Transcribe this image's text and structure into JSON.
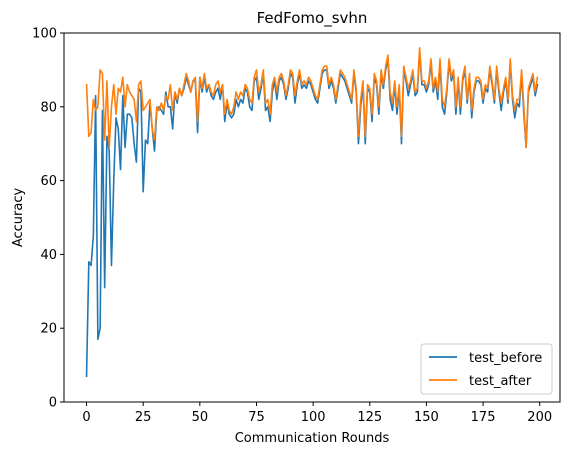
{
  "chart_data": {
    "type": "line",
    "title": "FedFomo_svhn",
    "xlabel": "Communication Rounds",
    "ylabel": "Accuracy",
    "xlim": [
      -9.95,
      208.95
    ],
    "ylim": [
      0,
      100
    ],
    "xticks": [
      0,
      25,
      50,
      75,
      100,
      125,
      150,
      175,
      200
    ],
    "yticks": [
      0,
      20,
      40,
      60,
      80,
      100
    ],
    "grid": false,
    "legend_position": "lower right",
    "x": [
      0,
      1,
      2,
      3,
      4,
      5,
      6,
      7,
      8,
      9,
      10,
      11,
      12,
      13,
      14,
      15,
      16,
      17,
      18,
      19,
      20,
      21,
      22,
      23,
      24,
      25,
      26,
      27,
      28,
      29,
      30,
      31,
      32,
      33,
      34,
      35,
      36,
      37,
      38,
      39,
      40,
      41,
      42,
      43,
      44,
      45,
      46,
      47,
      48,
      49,
      50,
      51,
      52,
      53,
      54,
      55,
      56,
      57,
      58,
      59,
      60,
      61,
      62,
      63,
      64,
      65,
      66,
      67,
      68,
      69,
      70,
      71,
      72,
      73,
      74,
      75,
      76,
      77,
      78,
      79,
      80,
      81,
      82,
      83,
      84,
      85,
      86,
      87,
      88,
      89,
      90,
      91,
      92,
      93,
      94,
      95,
      96,
      97,
      98,
      99,
      100,
      101,
      102,
      103,
      104,
      105,
      106,
      107,
      108,
      109,
      110,
      111,
      112,
      113,
      114,
      115,
      116,
      117,
      118,
      119,
      120,
      121,
      122,
      123,
      124,
      125,
      126,
      127,
      128,
      129,
      130,
      131,
      132,
      133,
      134,
      135,
      136,
      137,
      138,
      139,
      140,
      141,
      142,
      143,
      144,
      145,
      146,
      147,
      148,
      149,
      150,
      151,
      152,
      153,
      154,
      155,
      156,
      157,
      158,
      159,
      160,
      161,
      162,
      163,
      164,
      165,
      166,
      167,
      168,
      169,
      170,
      171,
      172,
      173,
      174,
      175,
      176,
      177,
      178,
      179,
      180,
      181,
      182,
      183,
      184,
      185,
      186,
      187,
      188,
      189,
      190,
      191,
      192,
      193,
      194,
      195,
      196,
      197,
      198,
      199
    ],
    "series": [
      {
        "name": "test_before",
        "color": "#1f77b4",
        "values": [
          7,
          38,
          37,
          45,
          83,
          17,
          20,
          79,
          31,
          72,
          68,
          37,
          60,
          77,
          74,
          63,
          83,
          69,
          78,
          78,
          77,
          70,
          65,
          85,
          84,
          57,
          71,
          70,
          81,
          74,
          68,
          79,
          80,
          79,
          78,
          84,
          80,
          80,
          74,
          84,
          81,
          85,
          83,
          85,
          88,
          86,
          84,
          87,
          87,
          73,
          88,
          84,
          88,
          84,
          86,
          83,
          82,
          84,
          85,
          82,
          86,
          76,
          81,
          78,
          77,
          78,
          82,
          80,
          82,
          81,
          85,
          84,
          80,
          79,
          87,
          88,
          82,
          85,
          89,
          79,
          80,
          76,
          84,
          87,
          82,
          87,
          88,
          86,
          82,
          85,
          89,
          88,
          81,
          86,
          89,
          85,
          86,
          85,
          87,
          86,
          84,
          82,
          81,
          85,
          89,
          90,
          90,
          85,
          87,
          85,
          81,
          85,
          89,
          88,
          87,
          85,
          83,
          81,
          89,
          84,
          70,
          80,
          86,
          70,
          85,
          84,
          76,
          88,
          86,
          78,
          89,
          85,
          90,
          93,
          82,
          79,
          86,
          78,
          85,
          70,
          90,
          87,
          83,
          86,
          89,
          83,
          84,
          95,
          86,
          86,
          84,
          86,
          92,
          84,
          87,
          82,
          92,
          80,
          78,
          84,
          92,
          87,
          89,
          78,
          87,
          78,
          87,
          90,
          81,
          88,
          77,
          84,
          87,
          87,
          86,
          81,
          85,
          84,
          90,
          86,
          81,
          90,
          84,
          79,
          84,
          87,
          81,
          92,
          82,
          77,
          81,
          80,
          89,
          78,
          69,
          84,
          86,
          88,
          83,
          86
        ]
      },
      {
        "name": "test_after",
        "color": "#ff7f0e",
        "values": [
          86,
          72,
          73,
          82,
          79,
          80,
          90,
          89,
          71,
          87,
          69,
          80,
          86,
          78,
          85,
          84,
          88,
          80,
          86,
          84,
          83,
          82,
          76,
          86,
          87,
          79,
          80,
          81,
          82,
          74,
          71,
          80,
          79,
          81,
          79,
          83,
          82,
          86,
          79,
          84,
          82,
          85,
          83,
          86,
          89,
          87,
          84,
          87,
          88,
          76,
          88,
          85,
          89,
          85,
          86,
          84,
          83,
          86,
          87,
          84,
          86,
          78,
          82,
          79,
          78,
          80,
          84,
          82,
          84,
          83,
          86,
          85,
          82,
          81,
          88,
          90,
          84,
          86,
          90,
          81,
          82,
          78,
          86,
          88,
          84,
          88,
          89,
          87,
          83,
          86,
          90,
          89,
          83,
          87,
          90,
          86,
          87,
          86,
          88,
          87,
          85,
          83,
          82,
          86,
          90,
          91,
          91,
          86,
          88,
          86,
          82,
          86,
          90,
          89,
          88,
          86,
          84,
          82,
          90,
          85,
          72,
          82,
          87,
          72,
          86,
          85,
          78,
          89,
          87,
          80,
          90,
          86,
          91,
          94,
          84,
          81,
          87,
          80,
          86,
          72,
          91,
          88,
          85,
          87,
          90,
          84,
          85,
          96,
          87,
          87,
          85,
          87,
          93,
          85,
          88,
          84,
          93,
          82,
          80,
          85,
          93,
          88,
          90,
          80,
          88,
          80,
          88,
          91,
          82,
          89,
          79,
          85,
          88,
          88,
          87,
          82,
          86,
          85,
          91,
          87,
          82,
          91,
          85,
          81,
          85,
          88,
          82,
          93,
          83,
          79,
          82,
          82,
          90,
          80,
          69,
          85,
          87,
          89,
          84,
          88
        ]
      }
    ]
  }
}
